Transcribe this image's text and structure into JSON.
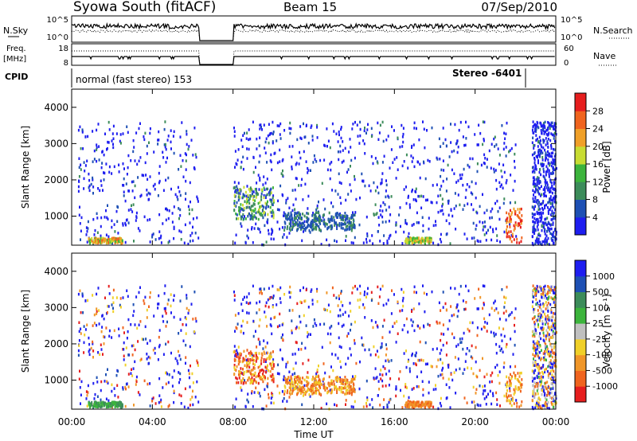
{
  "header": {
    "title": "Syowa South (fitACF)",
    "beam": "Beam 15",
    "date": "07/Sep/2010"
  },
  "top_panels": {
    "nsky_label": "N.Sky",
    "nsearch_label": "N.Search",
    "noise_ticks": [
      "10^5",
      "10^0"
    ],
    "freq_label_1": "Freq.",
    "freq_label_2": "[MHz]",
    "freq_ticks": [
      "18",
      "8"
    ],
    "nave_label": "Nave",
    "nave_ticks": [
      "60",
      "0"
    ],
    "cpid_label": "CPID",
    "cpid_mode_left": "normal (fast stereo) 153",
    "cpid_mode_right": "Stereo -6401"
  },
  "colors": {
    "power": [
      "#1e1ef0",
      "#1e50b4",
      "#3c8c5a",
      "#3cb43c",
      "#c8dc32",
      "#f0a028",
      "#f0641e",
      "#e61e1e"
    ],
    "velocity": [
      "#1e1ef0",
      "#1e50b4",
      "#3c8c5a",
      "#3cb43c",
      "#c0c0c0",
      "#f0d028",
      "#f09628",
      "#f0641e",
      "#e61e1e"
    ]
  },
  "chart_data": [
    {
      "type": "heatmap",
      "title": "Power",
      "xlabel": "",
      "ylabel": "Slant Range [km]",
      "x_ticks": [
        "00:00",
        "04:00",
        "08:00",
        "12:00",
        "16:00",
        "20:00",
        "00:00"
      ],
      "y_ticks": [
        1000,
        2000,
        3000,
        4000
      ],
      "ylim": [
        200,
        4500
      ],
      "x_range_hours": [
        0,
        24
      ],
      "colorbar": {
        "label": "Power [dB]",
        "ticks": [
          "4",
          "8",
          "12",
          "16",
          "20",
          "24",
          "28"
        ],
        "range": [
          0,
          30
        ]
      },
      "data_gap_hours": [
        6.3,
        8.0
      ],
      "scatter_regions": [
        {
          "from_hour": 0.3,
          "to_hour": 6.3,
          "range_km": [
            200,
            3600
          ],
          "dominant": "4-8 dB"
        },
        {
          "from_hour": 8.0,
          "to_hour": 22.0,
          "range_km": [
            200,
            3600
          ],
          "dominant": "4-8 dB"
        },
        {
          "from_hour": 22.8,
          "to_hour": 24.0,
          "range_km": [
            200,
            3600
          ],
          "dominant": "4-8 dB"
        }
      ],
      "notable_echoes": [
        {
          "label": "",
          "from_hour": 0.8,
          "to_hour": 2.5,
          "range_km": [
            250,
            400
          ],
          "power_db": "12-24"
        },
        {
          "label": "",
          "from_hour": 16.5,
          "to_hour": 17.8,
          "range_km": [
            250,
            400
          ],
          "power_db": "12-20"
        },
        {
          "label": "",
          "from_hour": 8.0,
          "to_hour": 10.0,
          "range_km": [
            900,
            1800
          ],
          "power_db": "8-16"
        },
        {
          "label": "",
          "from_hour": 21.5,
          "to_hour": 22.3,
          "range_km": [
            250,
            1200
          ],
          "power_db": "20-30"
        }
      ]
    },
    {
      "type": "heatmap",
      "title": "Velocity",
      "xlabel": "Time UT",
      "ylabel": "Slant Range [km]",
      "x_ticks": [
        "00:00",
        "04:00",
        "08:00",
        "12:00",
        "16:00",
        "20:00",
        "00:00"
      ],
      "y_ticks": [
        1000,
        2000,
        3000,
        4000
      ],
      "ylim": [
        200,
        4500
      ],
      "x_range_hours": [
        0,
        24
      ],
      "colorbar": {
        "label": "Velocity [m s⁻¹]",
        "ticks": [
          "1000",
          "500",
          "100",
          "25",
          "-25",
          "-100",
          "-500",
          "-1000"
        ],
        "range": [
          -1000,
          1000
        ]
      },
      "data_gap_hours": [
        6.3,
        8.0
      ],
      "notable_echoes": [
        {
          "label": "",
          "from_hour": 0.8,
          "to_hour": 2.5,
          "range_km": [
            200,
            350
          ],
          "velocity_ms": "25-100"
        },
        {
          "label": "",
          "from_hour": 16.5,
          "to_hour": 17.8,
          "range_km": [
            200,
            400
          ],
          "velocity_ms": "-500 to -100"
        },
        {
          "label": "",
          "from_hour": 8.0,
          "to_hour": 10.5,
          "range_km": [
            900,
            1800
          ],
          "velocity_ms": "-1000 to -100"
        },
        {
          "label": "",
          "from_hour": 10.5,
          "to_hour": 14.0,
          "range_km": [
            600,
            1100
          ],
          "velocity_ms": "-500 to -25"
        }
      ]
    }
  ]
}
